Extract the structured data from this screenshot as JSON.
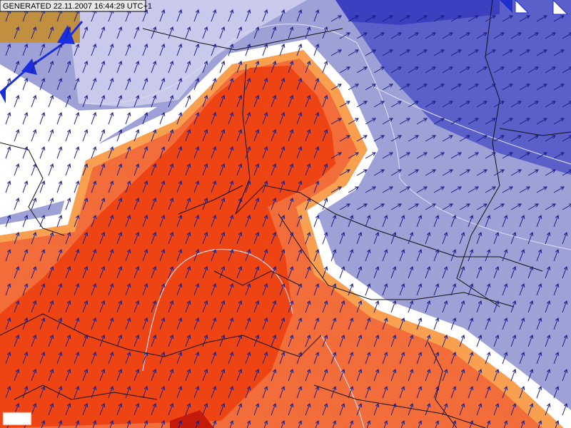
{
  "header": {
    "timestamp": "GENERATED 22.11.2007 16:44:29 UTC+1"
  }
}
